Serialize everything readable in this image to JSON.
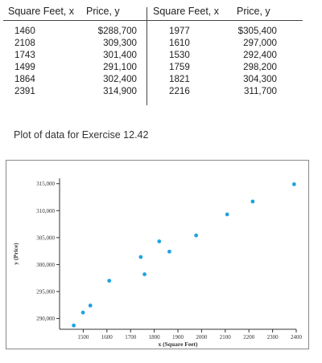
{
  "table": {
    "headers": [
      "Square Feet, x",
      "Price, y",
      "Square Feet, x",
      "Price, y"
    ],
    "rows": [
      [
        "1460",
        "$288,700",
        "1977",
        "$305,400"
      ],
      [
        "2108",
        "309,300",
        "1610",
        "297,000"
      ],
      [
        "1743",
        "301,400",
        "1530",
        "292,400"
      ],
      [
        "1499",
        "291,100",
        "1759",
        "298,200"
      ],
      [
        "1864",
        "302,400",
        "1821",
        "304,300"
      ],
      [
        "2391",
        "314,900",
        "2216",
        "311,700"
      ]
    ]
  },
  "caption": "Plot of data for Exercise 12.42",
  "chart_data": {
    "type": "scatter",
    "title": "",
    "xlabel": "x (Square Feet)",
    "ylabel": "y (Price)",
    "xlim": [
      1400,
      2400
    ],
    "ylim": [
      288000,
      316000
    ],
    "x_ticks": [
      1500,
      1600,
      1700,
      1800,
      1900,
      2000,
      2100,
      2200,
      2300,
      2400
    ],
    "y_ticks": [
      290000,
      295000,
      300000,
      305000,
      310000,
      315000
    ],
    "y_tick_labels": [
      "290,000",
      "295,000",
      "300,000",
      "305,000",
      "310,000",
      "315,000"
    ],
    "point_color": "#1fa3e0",
    "points": [
      {
        "x": 1460,
        "y": 288700
      },
      {
        "x": 2108,
        "y": 309300
      },
      {
        "x": 1743,
        "y": 301400
      },
      {
        "x": 1499,
        "y": 291100
      },
      {
        "x": 1864,
        "y": 302400
      },
      {
        "x": 2391,
        "y": 314900
      },
      {
        "x": 1977,
        "y": 305400
      },
      {
        "x": 1610,
        "y": 297000
      },
      {
        "x": 1530,
        "y": 292400
      },
      {
        "x": 1759,
        "y": 298200
      },
      {
        "x": 1821,
        "y": 304300
      },
      {
        "x": 2216,
        "y": 311700
      }
    ]
  }
}
